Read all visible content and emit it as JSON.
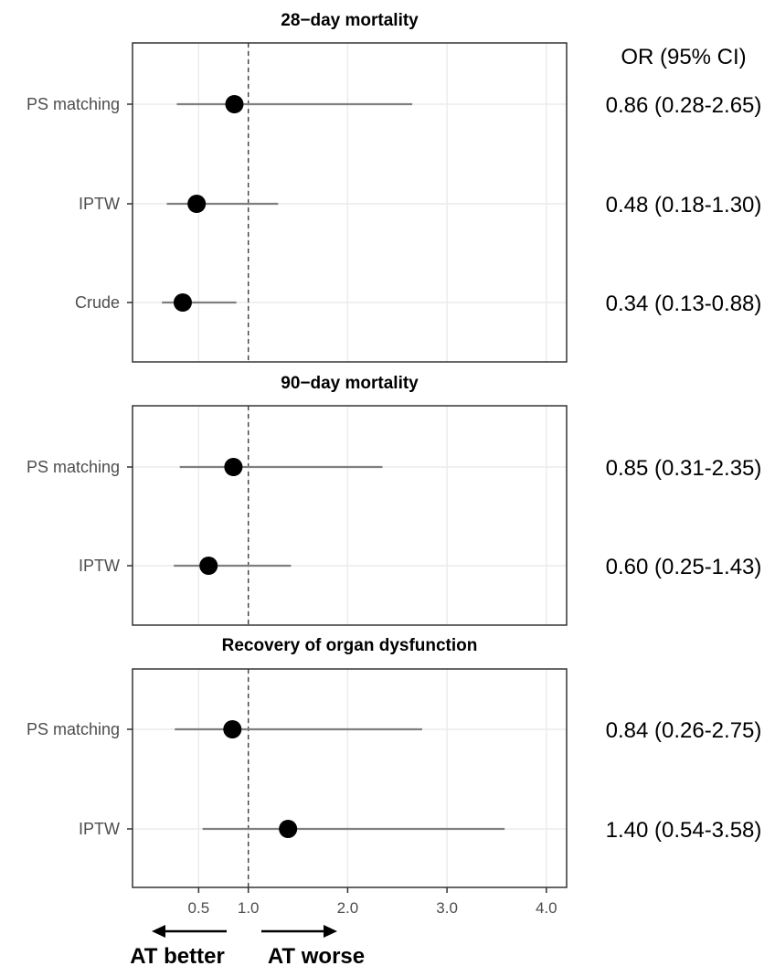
{
  "or_header": "OR (95% CI)",
  "direction": {
    "better_label": "AT better",
    "worse_label": "AT worse"
  },
  "chart_data": {
    "type": "scatter",
    "subtype": "forest-plot",
    "x_ticks": [
      0.5,
      1.0,
      2.0,
      3.0,
      4.0
    ],
    "x_tick_labels": [
      "0.5",
      "1.0",
      "2.0",
      "3.0",
      "4.0"
    ],
    "xlim": [
      0.0,
      4.2
    ],
    "reference_line": 1.0,
    "grid": true,
    "colors": {
      "point": "#000000",
      "ci_line": "#7f7f7f",
      "grid": "#ebebeb",
      "reference": "#333333"
    },
    "panels": [
      {
        "title": "28−day mortality",
        "rows": [
          {
            "label": "PS matching",
            "or": 0.86,
            "lo": 0.28,
            "hi": 2.65,
            "text": "0.86 (0.28-2.65)"
          },
          {
            "label": "IPTW",
            "or": 0.48,
            "lo": 0.18,
            "hi": 1.3,
            "text": "0.48 (0.18-1.30)"
          },
          {
            "label": "Crude",
            "or": 0.34,
            "lo": 0.13,
            "hi": 0.88,
            "text": "0.34 (0.13-0.88)"
          }
        ]
      },
      {
        "title": "90−day mortality",
        "rows": [
          {
            "label": "PS matching",
            "or": 0.85,
            "lo": 0.31,
            "hi": 2.35,
            "text": "0.85 (0.31-2.35)"
          },
          {
            "label": "IPTW",
            "or": 0.6,
            "lo": 0.25,
            "hi": 1.43,
            "text": "0.60 (0.25-1.43)"
          }
        ]
      },
      {
        "title": "Recovery of organ dysfunction",
        "rows": [
          {
            "label": "PS matching",
            "or": 0.84,
            "lo": 0.26,
            "hi": 2.75,
            "text": "0.84 (0.26-2.75)"
          },
          {
            "label": "IPTW",
            "or": 1.4,
            "lo": 0.54,
            "hi": 3.58,
            "text": "1.40 (0.54-3.58)"
          }
        ]
      }
    ]
  }
}
